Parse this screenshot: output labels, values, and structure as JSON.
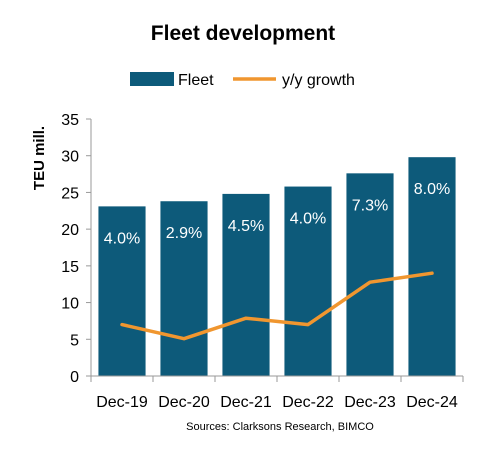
{
  "chart_data": {
    "type": "bar",
    "title": "Fleet development",
    "ylabel": "TEU mill.",
    "xlabel": "",
    "categories": [
      "Dec-19",
      "Dec-20",
      "Dec-21",
      "Dec-22",
      "Dec-23",
      "Dec-24"
    ],
    "ylim": [
      0,
      35
    ],
    "yticks": [
      0,
      5,
      10,
      15,
      20,
      25,
      30,
      35
    ],
    "grid": false,
    "legend_position": "top",
    "series": [
      {
        "name": "Fleet",
        "kind": "bar",
        "color": "#0d5a7a",
        "values": [
          23.1,
          23.8,
          24.8,
          25.8,
          27.6,
          29.8
        ]
      },
      {
        "name": "y/y growth",
        "kind": "line",
        "color": "#f0962f",
        "values": [
          4.0,
          2.9,
          4.5,
          4.0,
          7.3,
          8.0
        ],
        "labels": [
          "4.0%",
          "2.9%",
          "4.5%",
          "4.0%",
          "7.3%",
          "8.0%"
        ]
      }
    ],
    "source": "Sources: Clarksons Research, BIMCO"
  }
}
